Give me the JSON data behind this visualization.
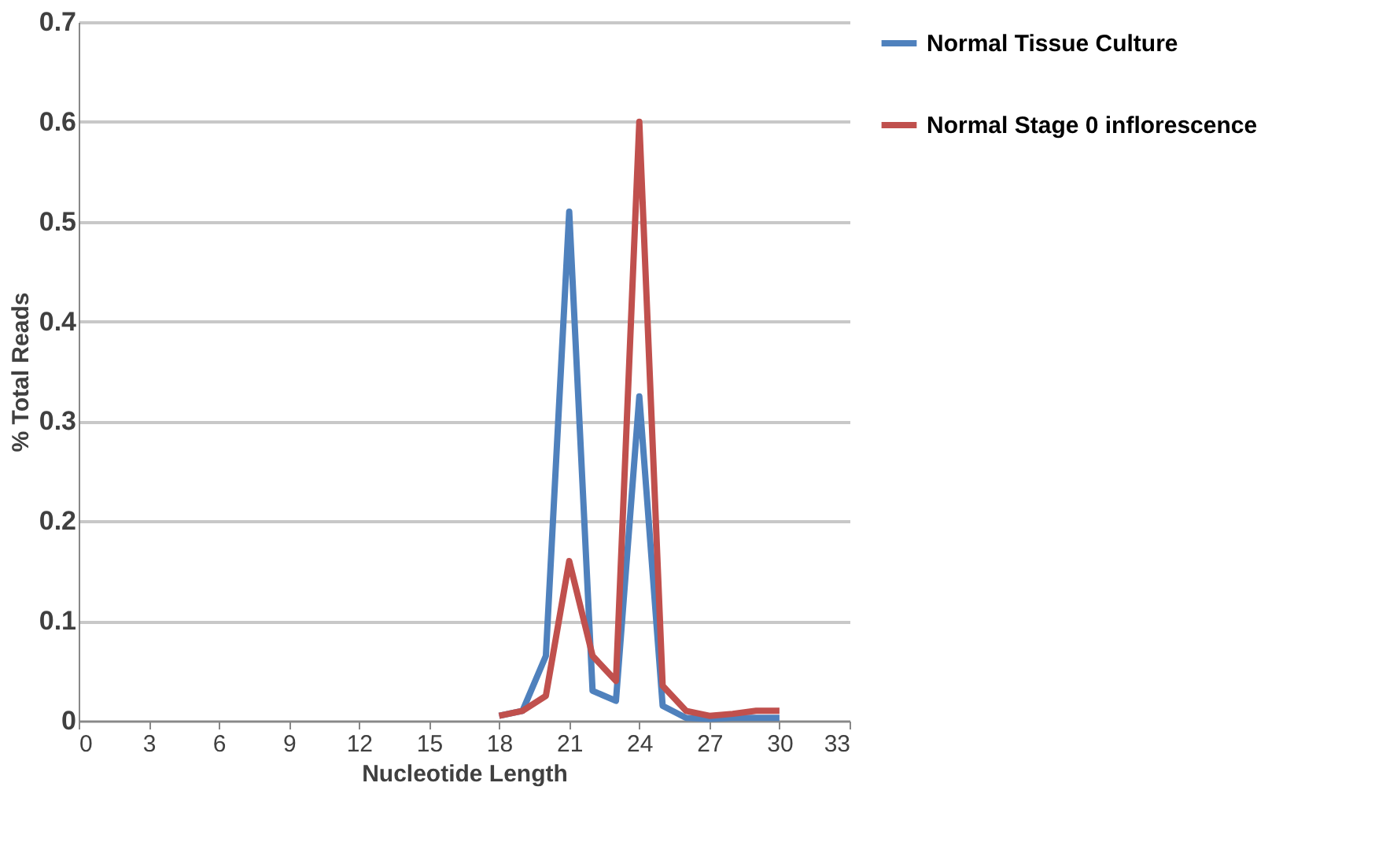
{
  "chart_data": {
    "type": "line",
    "xlabel": "Nucleotide Length",
    "ylabel": "% Total Reads",
    "x": [
      18,
      19,
      20,
      21,
      22,
      23,
      24,
      25,
      26,
      27,
      28,
      29,
      30
    ],
    "series": [
      {
        "name": "Normal Tissue Culture",
        "color": "#4f81bd",
        "values": [
          0.005,
          0.01,
          0.065,
          0.51,
          0.03,
          0.02,
          0.325,
          0.015,
          0.003,
          0.002,
          0.003,
          0.003,
          0.003
        ]
      },
      {
        "name": "Normal Stage 0 inflorescence",
        "color": "#c0504d",
        "values": [
          0.005,
          0.01,
          0.025,
          0.16,
          0.065,
          0.04,
          0.6,
          0.035,
          0.01,
          0.005,
          0.007,
          0.01,
          0.01
        ]
      }
    ],
    "xlim": [
      0,
      33
    ],
    "xticks": [
      0,
      3,
      6,
      9,
      12,
      15,
      18,
      21,
      24,
      27,
      30,
      33
    ],
    "ylim": [
      0,
      0.7
    ],
    "yticks": [
      0,
      0.1,
      0.2,
      0.3,
      0.4,
      0.5,
      0.6,
      0.7
    ],
    "grid": "y",
    "legend": "right",
    "marker": "none",
    "line_style": "solid"
  }
}
